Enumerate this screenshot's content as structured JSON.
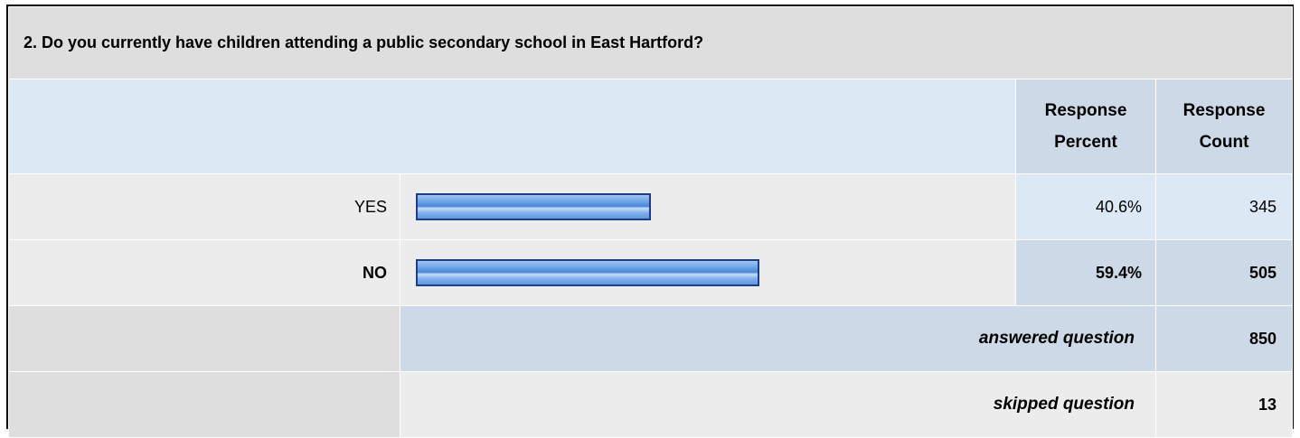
{
  "question": {
    "title": "2. Do you currently have children attending a public secondary school in East Hartford?"
  },
  "header": {
    "percent_line1": "Response",
    "percent_line2": "Percent",
    "count_line1": "Response",
    "count_line2": "Count"
  },
  "answers": [
    {
      "label": "YES",
      "percent": "40.6%",
      "count": "345",
      "fraction": 0.406,
      "highlight": false
    },
    {
      "label": "NO",
      "percent": "59.4%",
      "count": "505",
      "fraction": 0.594,
      "highlight": true
    }
  ],
  "summary": {
    "answered_label": "answered question",
    "answered_value": "850",
    "skipped_label": "skipped question",
    "skipped_value": "13"
  },
  "colors": {
    "bar_border": "#1d3d86",
    "bar_fill": "#6aa2e6",
    "header_bg": "#dde8f5",
    "column_bg": "#cdd9e6",
    "row_bg": "#ececec"
  }
}
